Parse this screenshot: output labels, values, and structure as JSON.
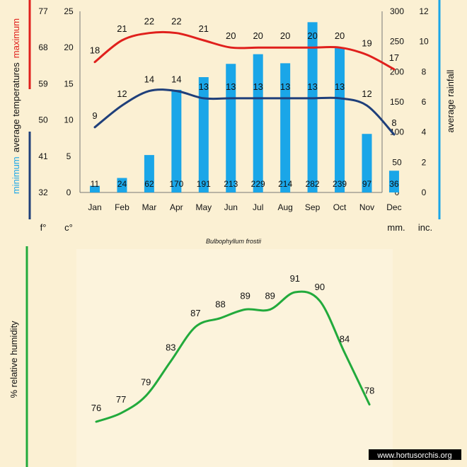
{
  "colors": {
    "background": "#fbf0d3",
    "maximum": "#e0201c",
    "minimum": "#1f3f7a",
    "rainfall": "#1aa6e8",
    "humidity": "#22aa3c",
    "text": "#111111"
  },
  "chart_data": [
    {
      "type": "bar+line",
      "title": "Bulbophyllum frostii",
      "categories": [
        "Jan",
        "Feb",
        "Mar",
        "Apr",
        "May",
        "Jun",
        "Jul",
        "Aug",
        "Sep",
        "Oct",
        "Nov",
        "Dec"
      ],
      "series": [
        {
          "name": "maximum",
          "kind": "line",
          "axis": "celsius",
          "values": [
            18,
            21,
            22,
            22,
            21,
            20,
            20,
            20,
            20,
            20,
            19,
            17
          ]
        },
        {
          "name": "minimum",
          "kind": "line",
          "axis": "celsius",
          "values": [
            9,
            12,
            14,
            14,
            13,
            13,
            13,
            13,
            13,
            13,
            12,
            8
          ]
        },
        {
          "name": "average rainfall",
          "kind": "bar",
          "axis": "mm",
          "values": [
            11,
            24,
            62,
            170,
            191,
            213,
            229,
            214,
            282,
            239,
            97,
            36
          ]
        }
      ],
      "axes": {
        "fahrenheit": {
          "unit": "f°",
          "range": [
            32,
            77
          ],
          "ticks": [
            "32",
            "41",
            "50",
            "59",
            "68",
            "77"
          ]
        },
        "celsius": {
          "unit": "c°",
          "range": [
            0,
            25
          ],
          "ticks": [
            "0",
            "5",
            "10",
            "15",
            "20",
            "25"
          ]
        },
        "mm": {
          "unit": "mm.",
          "range": [
            0,
            300
          ],
          "ticks": [
            "0",
            "50",
            "100",
            "150",
            "200",
            "250",
            "300"
          ]
        },
        "inches": {
          "unit": "inc.",
          "range": [
            0,
            12
          ],
          "ticks": [
            "0",
            "2",
            "4",
            "6",
            "8",
            "10",
            "12"
          ]
        }
      },
      "ylabel_left": {
        "colored_word_bottom": "minimum",
        "middle": "average temperatures",
        "colored_word_top": "maximum"
      },
      "ylabel_right": "average rainfall"
    },
    {
      "type": "line",
      "ylabel": "% relative humidity",
      "series": [
        {
          "name": "",
          "values": [
            76,
            77,
            79,
            83,
            87,
            88,
            89,
            89,
            91,
            90,
            84,
            78
          ]
        }
      ]
    }
  ],
  "watermark": "www.hortusorchis.org"
}
